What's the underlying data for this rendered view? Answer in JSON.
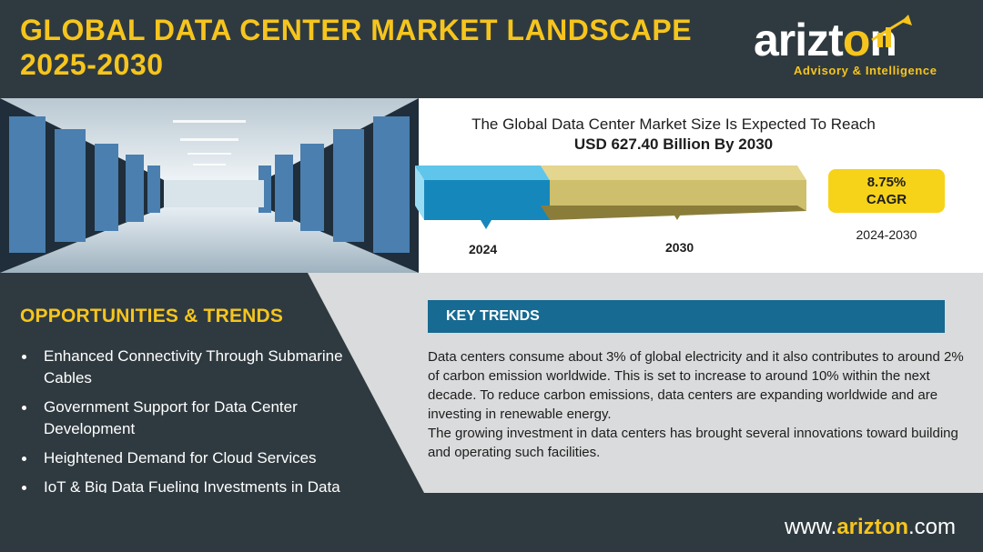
{
  "header": {
    "title_line1": "GLOBAL DATA CENTER MARKET LANDSCAPE",
    "title_line2": "2025-2030"
  },
  "logo": {
    "word_pre": "arizt",
    "word_post": "n",
    "tagline": "Advisory & Intelligence"
  },
  "headline": {
    "line1": "The Global Data Center Market Size Is Expected To Reach",
    "line2": "USD 627.40 Billion By 2030"
  },
  "growth": {
    "start_year": "2024",
    "end_year": "2030",
    "cagr_value": "8.75%",
    "cagr_label": "CAGR",
    "period": "2024-2030"
  },
  "opportunities": {
    "title": "OPPORTUNITIES & TRENDS",
    "items": [
      "Enhanced Connectivity Through Submarine Cables",
      "Government Support for Data Center Development",
      "Heightened Demand for Cloud Services",
      "IoT & Big Data Fueling Investments in Data Centers"
    ]
  },
  "key_trends": {
    "title": "KEY TRENDS",
    "para1": "Data centers consume about 3% of global electricity and it also contributes to around 2% of carbon emission worldwide. This is set to increase to around 10% within the next decade. To reduce carbon emissions, data centers are expanding worldwide and are investing in renewable energy.",
    "para2": "The growing investment in data centers has brought several innovations toward building and operating such facilities."
  },
  "footer": {
    "url_pre": "www.",
    "url_brand": "arizton",
    "url_post": ".com"
  },
  "colors": {
    "brand_yellow": "#f6c51d",
    "dark_slate": "#2f3a40",
    "blue": "#176a91"
  }
}
